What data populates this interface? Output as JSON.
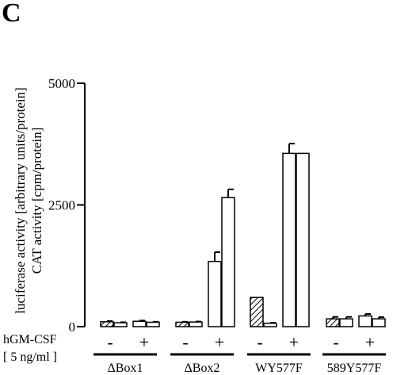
{
  "panel_label": "C",
  "y_axis_labels": [
    "luciferase activity [arbitrary units/protein]",
    "CAT activity [cpm/protein]"
  ],
  "treatment_label": {
    "line1": "hGM-CSF",
    "line2": "[ 5 ng/ml ]"
  },
  "treatment_signs": [
    "-",
    "+"
  ],
  "colors": {
    "minus_bar": "hatched-black-on-white",
    "plus_bar": "#ffffff",
    "stroke": "#000000"
  },
  "chart_data": {
    "type": "bar",
    "categories": [
      "ΔBox1",
      "ΔBox2",
      "WY577F",
      "589Y577F"
    ],
    "yticks": [
      "0",
      "2500",
      "5000"
    ],
    "ylim": [
      0,
      5000
    ],
    "grid": false,
    "legend": "none",
    "groups": [
      {
        "category": "ΔBox1",
        "bars": [
          {
            "hGM_CSF": "-",
            "assay": "CAT",
            "value": 100,
            "error": 15
          },
          {
            "hGM_CSF": "-",
            "assay": "luciferase",
            "value": 80,
            "error": 10
          },
          {
            "hGM_CSF": "+",
            "assay": "CAT",
            "value": 110,
            "error": 15
          },
          {
            "hGM_CSF": "+",
            "assay": "luciferase",
            "value": 90,
            "error": 10
          }
        ]
      },
      {
        "category": "ΔBox2",
        "bars": [
          {
            "hGM_CSF": "-",
            "assay": "CAT",
            "value": 90,
            "error": 10
          },
          {
            "hGM_CSF": "-",
            "assay": "luciferase",
            "value": 95,
            "error": 10
          },
          {
            "hGM_CSF": "+",
            "assay": "CAT",
            "value": 1340,
            "error": 190
          },
          {
            "hGM_CSF": "+",
            "assay": "luciferase",
            "value": 2650,
            "error": 170
          }
        ]
      },
      {
        "category": "WY577F",
        "bars": [
          {
            "hGM_CSF": "-",
            "assay": "CAT",
            "value": 600,
            "error": 0
          },
          {
            "hGM_CSF": "-",
            "assay": "luciferase",
            "value": 70,
            "error": 10
          },
          {
            "hGM_CSF": "+",
            "assay": "CAT",
            "value": 3560,
            "error": 200
          },
          {
            "hGM_CSF": "+",
            "assay": "luciferase",
            "value": 3560,
            "error": 0
          }
        ]
      },
      {
        "category": "589Y577F",
        "bars": [
          {
            "hGM_CSF": "-",
            "assay": "CAT",
            "value": 160,
            "error": 40
          },
          {
            "hGM_CSF": "-",
            "assay": "luciferase",
            "value": 160,
            "error": 40
          },
          {
            "hGM_CSF": "+",
            "assay": "CAT",
            "value": 220,
            "error": 40
          },
          {
            "hGM_CSF": "+",
            "assay": "luciferase",
            "value": 160,
            "error": 35
          }
        ]
      }
    ]
  }
}
